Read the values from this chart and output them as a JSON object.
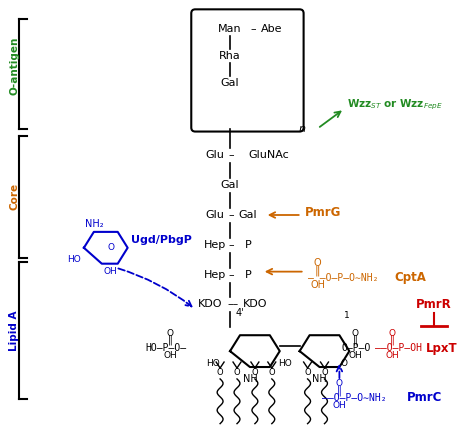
{
  "bg_color": "#ffffff",
  "fig_width": 4.74,
  "fig_height": 4.3,
  "dpi": 100,
  "colors": {
    "black": "#000000",
    "green": "#228B22",
    "orange": "#CC6600",
    "blue": "#0000CC",
    "red": "#CC0000"
  },
  "labels": {
    "o_antigen": "O-antigen",
    "core": "Core",
    "lipid_a": "Lipid A",
    "wzz": "Wzz$_{ST}$ or Wzz$_{FepE}$",
    "pmrg": "PmrG",
    "ugd": "Ugd/PbgP",
    "cpta": "CptA",
    "pmrr": "PmrR",
    "lpxt": "LpxT",
    "pmrc": "PmrC"
  }
}
